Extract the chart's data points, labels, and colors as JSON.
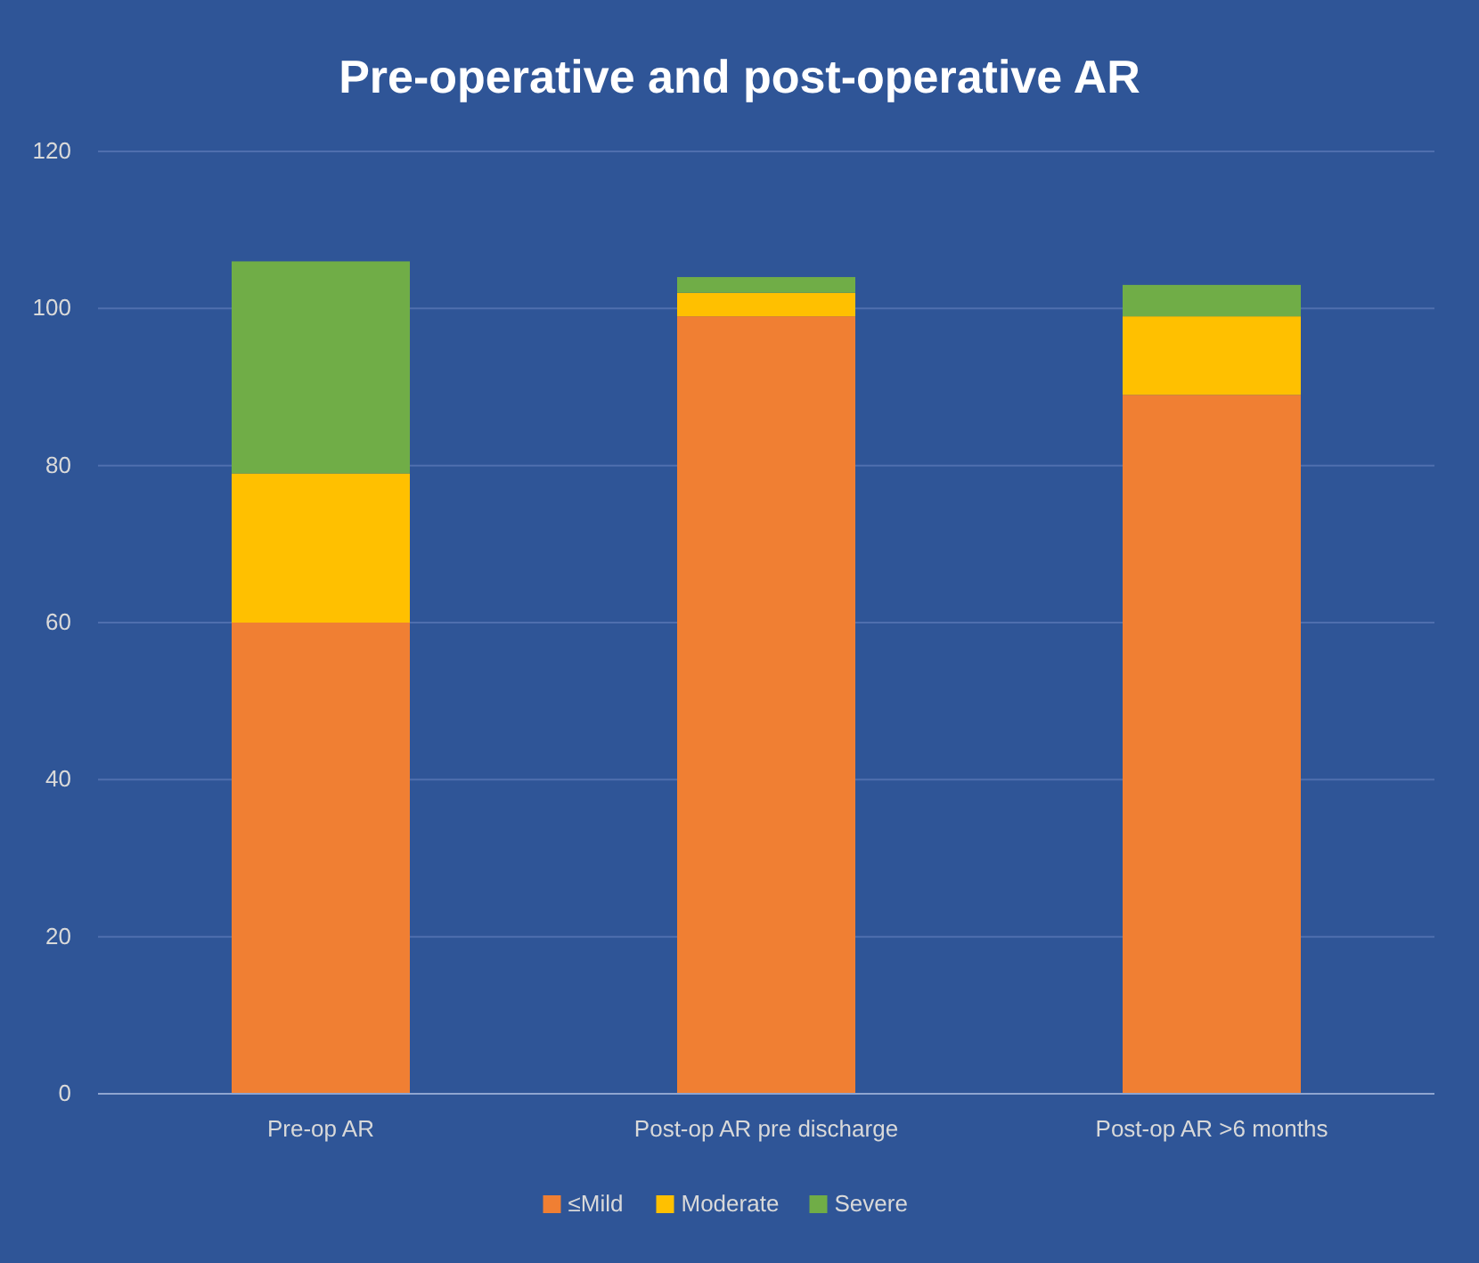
{
  "chart_data": {
    "type": "bar",
    "title": "Pre-operative and post-operative AR",
    "categories": [
      "Pre-op AR",
      "Post-op AR pre discharge",
      "Post-op AR >6 months"
    ],
    "stacked": true,
    "series": [
      {
        "name": "≤Mild",
        "color": "#f07f33",
        "values": [
          60,
          99,
          89
        ]
      },
      {
        "name": "Moderate",
        "color": "#ffc000",
        "values": [
          19,
          3,
          10
        ]
      },
      {
        "name": "Severe",
        "color": "#70ad47",
        "values": [
          27,
          2,
          4
        ]
      }
    ],
    "ylim": [
      0,
      120
    ],
    "yticks": [
      0,
      20,
      40,
      60,
      80,
      100,
      120
    ],
    "grid": "y",
    "legend": "bottom"
  }
}
